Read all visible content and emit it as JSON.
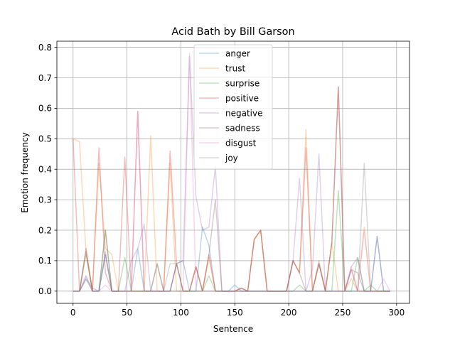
{
  "chart_data": {
    "type": "line",
    "title": "Acid Bath by Bill Garson",
    "xlabel": "Sentence",
    "ylabel": "Emotion frequency",
    "xlim": [
      -15,
      312
    ],
    "ylim": [
      -0.04,
      0.82
    ],
    "xticks": [
      0,
      50,
      100,
      150,
      200,
      250,
      300
    ],
    "yticks": [
      0.0,
      0.1,
      0.2,
      0.3,
      0.4,
      0.5,
      0.6,
      0.7,
      0.8
    ],
    "ytick_labels": [
      "0.0",
      "0.1",
      "0.2",
      "0.3",
      "0.4",
      "0.5",
      "0.6",
      "0.7",
      "0.8"
    ],
    "grid": true,
    "legend_position": "top-center",
    "line_alpha": 0.3,
    "x": [
      0,
      6,
      12,
      18,
      24,
      30,
      36,
      42,
      48,
      54,
      60,
      66,
      72,
      78,
      84,
      90,
      96,
      102,
      108,
      114,
      120,
      126,
      132,
      138,
      144,
      150,
      156,
      162,
      168,
      174,
      180,
      186,
      192,
      198,
      204,
      210,
      216,
      222,
      228,
      234,
      240,
      246,
      252,
      258,
      264,
      270,
      276,
      282,
      288,
      294
    ],
    "series": [
      {
        "name": "anger",
        "color": "#1f77b4",
        "values": [
          0,
          0,
          0.04,
          0.01,
          0,
          0.12,
          0,
          0,
          0,
          0,
          0.14,
          0,
          0,
          0,
          0,
          0,
          0.09,
          0.1,
          0,
          0,
          0.21,
          0.15,
          0,
          0,
          0,
          0.02,
          0,
          0,
          0,
          0,
          0,
          0,
          0,
          0,
          0,
          0,
          0,
          0,
          0,
          0,
          0,
          0,
          0,
          0,
          0,
          0,
          0,
          0.18,
          0,
          0
        ]
      },
      {
        "name": "trust",
        "color": "#ff7f0e",
        "values": [
          0.5,
          0.49,
          0.13,
          0,
          0.42,
          0.14,
          0.12,
          0,
          0,
          0,
          0,
          0,
          0.51,
          0,
          0,
          0.42,
          0,
          0,
          0,
          0.08,
          0,
          0.11,
          0,
          0,
          0,
          0,
          0.01,
          0,
          0.17,
          0.2,
          0,
          0,
          0,
          0,
          0.1,
          0.06,
          0.53,
          0,
          0.09,
          0,
          0.16,
          0,
          0,
          0.04,
          0,
          0.21,
          0,
          0,
          0,
          0
        ]
      },
      {
        "name": "surprise",
        "color": "#2ca02c",
        "values": [
          0,
          0,
          0.12,
          0,
          0,
          0.2,
          0,
          0,
          0.11,
          0,
          0,
          0,
          0,
          0,
          0,
          0,
          0,
          0,
          0,
          0,
          0,
          0.05,
          0,
          0,
          0,
          0,
          0,
          0,
          0,
          0,
          0,
          0,
          0,
          0,
          0,
          0.02,
          0,
          0,
          0,
          0,
          0,
          0.33,
          0,
          0,
          0.11,
          0,
          0.02,
          0,
          0,
          0
        ]
      },
      {
        "name": "positive",
        "color": "#d62728",
        "values": [
          0.5,
          0,
          0.14,
          0,
          0.47,
          0.06,
          0,
          0,
          0.44,
          0,
          0.59,
          0,
          0,
          0,
          0,
          0.46,
          0.09,
          0,
          0,
          0.08,
          0,
          0.12,
          0,
          0,
          0,
          0,
          0.01,
          0,
          0.17,
          0.2,
          0,
          0,
          0,
          0,
          0.1,
          0.06,
          0.47,
          0,
          0.09,
          0,
          0.16,
          0.67,
          0,
          0.07,
          0,
          0,
          0,
          0,
          0,
          0
        ]
      },
      {
        "name": "negative",
        "color": "#9467bd",
        "values": [
          0,
          0,
          0.05,
          0,
          0,
          0.13,
          0,
          0,
          0,
          0.1,
          0.14,
          0.22,
          0,
          0,
          0,
          0,
          0.09,
          0.1,
          0.77,
          0.31,
          0.2,
          0.21,
          0.41,
          0,
          0,
          0,
          0,
          0,
          0,
          0,
          0,
          0,
          0,
          0,
          0.1,
          0.37,
          0,
          0.07,
          0.45,
          0,
          0,
          0,
          0,
          0.08,
          0.11,
          0,
          0,
          0.18,
          0,
          0
        ]
      },
      {
        "name": "sadness",
        "color": "#8c564b",
        "values": [
          0,
          0,
          0.13,
          0,
          0,
          0.2,
          0,
          0,
          0,
          0,
          0,
          0,
          0,
          0.09,
          0,
          0,
          0.09,
          0,
          0,
          0.08,
          0,
          0.12,
          0.3,
          0,
          0,
          0,
          0.01,
          0,
          0.17,
          0.2,
          0,
          0,
          0,
          0,
          0.1,
          0.06,
          0,
          0,
          0.09,
          0,
          0.16,
          0.67,
          0,
          0.07,
          0.06,
          0,
          0,
          0,
          0,
          0
        ]
      },
      {
        "name": "disgust",
        "color": "#e377c2",
        "values": [
          0,
          0,
          0.05,
          0,
          0,
          0.02,
          0,
          0,
          0,
          0,
          0.59,
          0,
          0,
          0,
          0,
          0,
          0,
          0,
          0.78,
          0,
          0,
          0,
          0,
          0,
          0,
          0,
          0,
          0,
          0,
          0,
          0,
          0,
          0,
          0,
          0,
          0,
          0,
          0,
          0,
          0,
          0,
          0,
          0,
          0.08,
          0,
          0.2,
          0,
          0,
          0.04,
          0
        ]
      },
      {
        "name": "joy",
        "color": "#7f7f7f",
        "values": [
          0,
          0,
          0.04,
          0,
          0,
          0.12,
          0,
          0,
          0,
          0,
          0,
          0,
          0,
          0.09,
          0,
          0.09,
          0.09,
          0,
          0,
          0,
          0,
          0,
          0,
          0,
          0,
          0,
          0,
          0,
          0,
          0,
          0,
          0,
          0,
          0,
          0,
          0,
          0,
          0,
          0.1,
          0,
          0,
          0,
          0,
          0,
          0,
          0.42,
          0,
          0,
          0,
          0
        ]
      }
    ]
  }
}
